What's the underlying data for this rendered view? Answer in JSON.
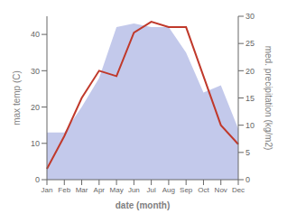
{
  "chart_data": {
    "type": "area",
    "xlabel": "date (month)",
    "ylabel": "max temp (C)",
    "y2label": "med. precipitation (kg/m2)",
    "categories": [
      "Jan",
      "Feb",
      "Mar",
      "Apr",
      "May",
      "Jun",
      "Jul",
      "Aug",
      "Sep",
      "Oct",
      "Nov",
      "Dec"
    ],
    "series": [
      {
        "type": "area",
        "color": "#b8c0e8",
        "values": [
          13,
          13,
          20,
          28,
          42,
          43,
          42,
          42,
          35,
          24,
          26,
          14
        ]
      },
      {
        "type": "line",
        "color": "#c0392b",
        "axis": "y2",
        "values": [
          2,
          8,
          15,
          20,
          19,
          27,
          29,
          28,
          28,
          19,
          10,
          6.5
        ]
      }
    ],
    "ylim": [
      0,
      45
    ],
    "yticks": [
      0,
      10,
      20,
      30,
      40
    ],
    "y2lim": [
      0,
      30
    ],
    "y2ticks": [
      0,
      5,
      10,
      15,
      20,
      25,
      30
    ],
    "grid": false
  }
}
